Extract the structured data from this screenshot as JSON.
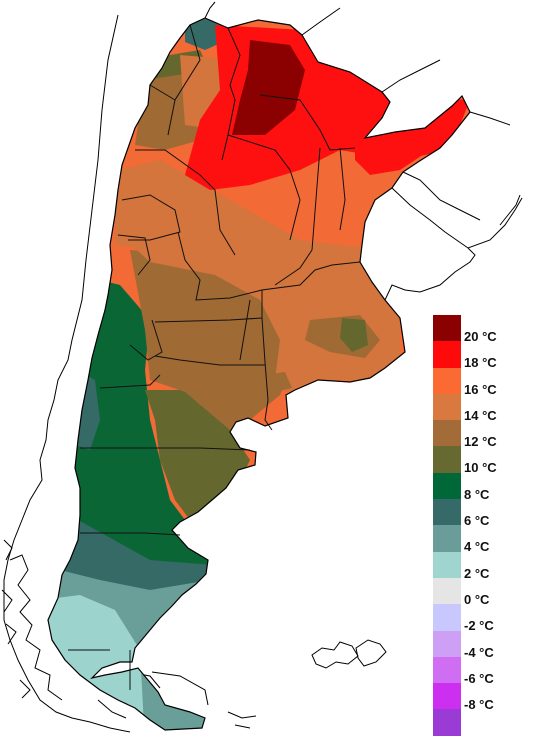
{
  "map": {
    "colors": {
      "c20": "#8b0000",
      "c18": "#ff1010",
      "c16": "#f26a35",
      "c14": "#d3753c",
      "c12": "#a06a35",
      "c10": "#64672e",
      "c8": "#0b6636",
      "c6": "#356a66",
      "c4": "#6a9e98",
      "c2": "#9cd3cd",
      "c0": "#e3e3e3",
      "border": "#1a1a1a",
      "coast": "#000000"
    }
  },
  "legend": {
    "items": [
      {
        "label": "20 °C",
        "color": "#8b0000"
      },
      {
        "label": "18 °C",
        "color": "#ff0a0a"
      },
      {
        "label": "16 °C",
        "color": "#fb6a33"
      },
      {
        "label": "14 °C",
        "color": "#d9783f"
      },
      {
        "label": "12 °C",
        "color": "#a26b37"
      },
      {
        "label": "10 °C",
        "color": "#676a30"
      },
      {
        "label": "8 °C",
        "color": "#006838"
      },
      {
        "label": "6 °C",
        "color": "#356a68"
      },
      {
        "label": "4 °C",
        "color": "#6a9d99"
      },
      {
        "label": "2 °C",
        "color": "#9fd4cf"
      },
      {
        "label": "0 °C",
        "color": "#e5e5e5"
      },
      {
        "label": "-2 °C",
        "color": "#c8c8ff"
      },
      {
        "label": "-4 °C",
        "color": "#cd9ff5"
      },
      {
        "label": "-6 °C",
        "color": "#d06ef3"
      },
      {
        "label": "-8 °C",
        "color": "#cc2ff0"
      },
      {
        "label": "",
        "color": "#9b3bd6"
      }
    ]
  }
}
